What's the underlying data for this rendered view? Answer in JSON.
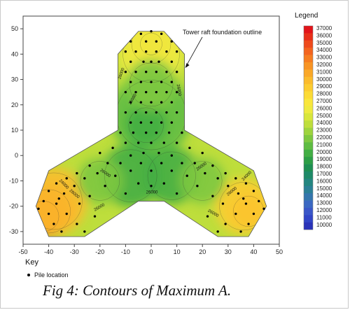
{
  "chart_data": {
    "type": "contour",
    "xlim": [
      -50,
      50
    ],
    "ylim": [
      -35,
      55
    ],
    "x_ticks": [
      -50,
      -40,
      -30,
      -20,
      -10,
      0,
      10,
      20,
      30,
      40,
      50
    ],
    "y_ticks": [
      -30,
      -20,
      -10,
      0,
      10,
      20,
      30,
      40,
      50
    ],
    "title": "",
    "xlabel": "",
    "ylabel": "",
    "legend": {
      "title": "Legend",
      "levels": [
        37000,
        36000,
        35000,
        34000,
        33000,
        32000,
        31000,
        30000,
        29000,
        28000,
        27000,
        26000,
        25000,
        24000,
        23000,
        22000,
        21000,
        20000,
        19000,
        18000,
        17000,
        16000,
        15000,
        14000,
        13000,
        12000,
        11000,
        10000
      ],
      "colors": [
        "#e2141a",
        "#e8301a",
        "#ee4a1c",
        "#f3641e",
        "#f67d20",
        "#f89424",
        "#faa828",
        "#fbbb2c",
        "#fccc30",
        "#fcdb36",
        "#f9e63c",
        "#eeea40",
        "#d8e63c",
        "#bede3c",
        "#9ed43e",
        "#7ec840",
        "#5ebc42",
        "#42ae44",
        "#2c9e46",
        "#1e8f52",
        "#1e8a68",
        "#248680",
        "#2b8096",
        "#3476ad",
        "#3b68c2",
        "#3a56c8",
        "#3145c6",
        "#2a33b8"
      ]
    },
    "annotation": "Tower raft foundation outline",
    "contour_labels": [
      "26000",
      "26000",
      "26000",
      "26000",
      "26000",
      "26000",
      "26000",
      "26000",
      "26000",
      "26000",
      "24000",
      "24000"
    ],
    "outline_polygon": [
      [
        -5,
        49
      ],
      [
        5,
        49
      ],
      [
        13,
        40
      ],
      [
        13,
        10
      ],
      [
        40,
        -6
      ],
      [
        45,
        -20
      ],
      [
        38,
        -32
      ],
      [
        26,
        -32
      ],
      [
        5,
        -18
      ],
      [
        -5,
        -18
      ],
      [
        -26,
        -32
      ],
      [
        -40,
        -32
      ],
      [
        -45,
        -20
      ],
      [
        -40,
        -6
      ],
      [
        -13,
        10
      ],
      [
        -13,
        40
      ]
    ],
    "piles": [
      [
        -4,
        48
      ],
      [
        0,
        49
      ],
      [
        4,
        48
      ],
      [
        -8,
        45
      ],
      [
        8,
        45
      ],
      [
        -2,
        45
      ],
      [
        2,
        45
      ],
      [
        -10,
        41
      ],
      [
        -6,
        41
      ],
      [
        -2,
        41
      ],
      [
        2,
        41
      ],
      [
        6,
        41
      ],
      [
        10,
        41
      ],
      [
        -8,
        37
      ],
      [
        -3,
        37
      ],
      [
        0,
        37
      ],
      [
        3,
        37
      ],
      [
        8,
        37
      ],
      [
        -10,
        33
      ],
      [
        -6,
        33
      ],
      [
        -2,
        33
      ],
      [
        2,
        33
      ],
      [
        6,
        33
      ],
      [
        10,
        33
      ],
      [
        -8,
        29
      ],
      [
        -4,
        29
      ],
      [
        0,
        29
      ],
      [
        4,
        29
      ],
      [
        8,
        29
      ],
      [
        -10,
        25
      ],
      [
        -6,
        25
      ],
      [
        -2,
        25
      ],
      [
        2,
        25
      ],
      [
        6,
        25
      ],
      [
        10,
        25
      ],
      [
        -8,
        21
      ],
      [
        -4,
        21
      ],
      [
        0,
        21
      ],
      [
        4,
        21
      ],
      [
        8,
        21
      ],
      [
        -10,
        17
      ],
      [
        -6,
        17
      ],
      [
        -2,
        17
      ],
      [
        2,
        17
      ],
      [
        6,
        17
      ],
      [
        10,
        17
      ],
      [
        -8,
        13
      ],
      [
        -4,
        13
      ],
      [
        0,
        13
      ],
      [
        4,
        13
      ],
      [
        8,
        13
      ],
      [
        -12,
        9
      ],
      [
        -7,
        9
      ],
      [
        -2,
        9
      ],
      [
        2,
        9
      ],
      [
        7,
        9
      ],
      [
        12,
        9
      ],
      [
        -10,
        5
      ],
      [
        -5,
        5
      ],
      [
        0,
        5
      ],
      [
        5,
        5
      ],
      [
        10,
        5
      ],
      [
        -15,
        3
      ],
      [
        15,
        3
      ],
      [
        -3,
        1
      ],
      [
        3,
        1
      ],
      [
        -20,
        1
      ],
      [
        20,
        1
      ],
      [
        -8,
        0
      ],
      [
        8,
        0
      ],
      [
        -17,
        -3
      ],
      [
        17,
        -3
      ],
      [
        -12,
        -3
      ],
      [
        12,
        -3
      ],
      [
        -4,
        -3
      ],
      [
        4,
        -3
      ],
      [
        -24,
        -4
      ],
      [
        24,
        -4
      ],
      [
        -8,
        -6
      ],
      [
        8,
        -6
      ],
      [
        0,
        -6
      ],
      [
        -29,
        -7
      ],
      [
        29,
        -7
      ],
      [
        -21,
        -7
      ],
      [
        21,
        -7
      ],
      [
        -14,
        -8
      ],
      [
        14,
        -8
      ],
      [
        -33,
        -9
      ],
      [
        33,
        -9
      ],
      [
        -26,
        -9
      ],
      [
        26,
        -9
      ],
      [
        -37,
        -11
      ],
      [
        37,
        -11
      ],
      [
        -30,
        -12
      ],
      [
        30,
        -12
      ],
      [
        -18,
        -12
      ],
      [
        18,
        -12
      ],
      [
        -5,
        -11
      ],
      [
        5,
        -11
      ],
      [
        0,
        -12
      ],
      [
        -40,
        -14
      ],
      [
        40,
        -14
      ],
      [
        -34,
        -15
      ],
      [
        34,
        -15
      ],
      [
        -24,
        -16
      ],
      [
        24,
        -16
      ],
      [
        -10,
        -15
      ],
      [
        10,
        -15
      ],
      [
        -42,
        -18
      ],
      [
        42,
        -18
      ],
      [
        -37,
        -19
      ],
      [
        37,
        -19
      ],
      [
        -28,
        -19
      ],
      [
        28,
        -19
      ],
      [
        -40,
        -23
      ],
      [
        40,
        -23
      ],
      [
        -33,
        -23
      ],
      [
        33,
        -23
      ],
      [
        -22,
        -24
      ],
      [
        22,
        -24
      ],
      [
        -38,
        -27
      ],
      [
        38,
        -27
      ],
      [
        -29,
        -27
      ],
      [
        29,
        -27
      ],
      [
        -35,
        -30
      ],
      [
        35,
        -30
      ],
      [
        -26,
        -30
      ],
      [
        26,
        -30
      ],
      [
        -44,
        -21
      ],
      [
        44,
        -21
      ],
      [
        -36,
        -17
      ],
      [
        36,
        -17
      ]
    ],
    "blobs": [
      {
        "x": -42,
        "y": -24,
        "r": 7,
        "color": "#e2141a"
      },
      {
        "x": -40,
        "y": -22,
        "r": 10,
        "color": "#f3641e"
      },
      {
        "x": -38,
        "y": -18,
        "r": 13,
        "color": "#fbbb2c"
      },
      {
        "x": 38,
        "y": -22,
        "r": 7,
        "color": "#f67d20"
      },
      {
        "x": 36,
        "y": -20,
        "r": 11,
        "color": "#fccc30"
      },
      {
        "x": 0,
        "y": 44,
        "r": 5,
        "color": "#f67d20"
      },
      {
        "x": 0,
        "y": 44,
        "r": 9,
        "color": "#fccc30"
      },
      {
        "x": 0,
        "y": 40,
        "r": 13,
        "color": "#eeea40"
      },
      {
        "x": 0,
        "y": 16,
        "r": 16,
        "color": "#5ebc42"
      },
      {
        "x": -2,
        "y": 12,
        "r": 8,
        "color": "#42ae44"
      },
      {
        "x": -8,
        "y": -8,
        "r": 12,
        "color": "#42ae44"
      },
      {
        "x": 8,
        "y": -8,
        "r": 11,
        "color": "#42ae44"
      },
      {
        "x": -20,
        "y": -10,
        "r": 9,
        "color": "#7ec840"
      },
      {
        "x": 20,
        "y": -10,
        "r": 9,
        "color": "#7ec840"
      },
      {
        "x": 0,
        "y": 28,
        "r": 10,
        "color": "#7ec840"
      }
    ]
  },
  "key": {
    "title": "Key",
    "item_label": "Pile location"
  },
  "caption": "Fig 4:  Contours of Maximum A."
}
